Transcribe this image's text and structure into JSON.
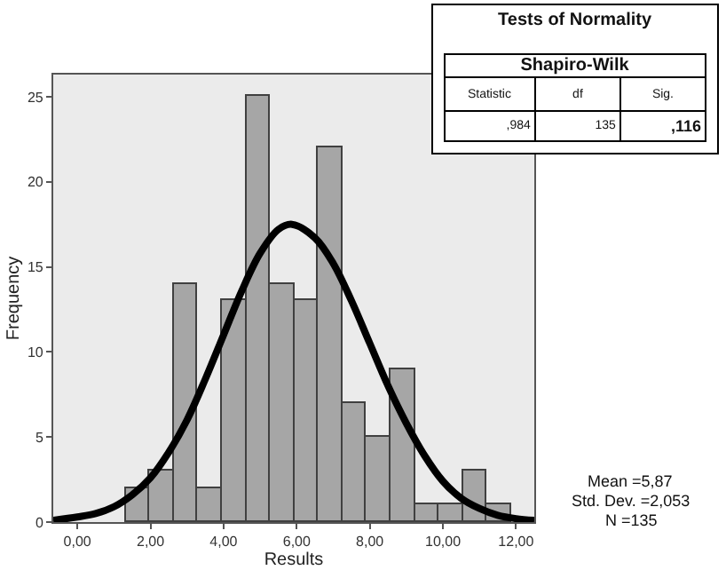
{
  "chart_data": {
    "type": "histogram",
    "xlabel": "Results",
    "ylabel": "Frequency",
    "bins": [
      1.31,
      1.97,
      2.63,
      3.29,
      3.95,
      4.61,
      5.27,
      5.93,
      6.59,
      7.25,
      7.91,
      8.57,
      9.23,
      9.89,
      10.55,
      11.21,
      11.87
    ],
    "values": [
      2,
      3,
      14,
      2,
      13,
      25,
      14,
      13,
      22,
      7,
      5,
      9,
      1,
      1,
      3,
      1
    ],
    "color": "#a6a6a6",
    "series": [
      {
        "type": "line",
        "color": "#000000",
        "x": [
          -0.66,
          0,
          0.5,
          1,
          1.5,
          2,
          2.5,
          3,
          3.5,
          4,
          4.5,
          5,
          5.5,
          5.87,
          6.5,
          7,
          7.5,
          8,
          8.5,
          9,
          9.5,
          10,
          10.5,
          11,
          11.5,
          12,
          12.5
        ],
        "values": [
          0.1,
          0.3,
          0.5,
          0.9,
          1.6,
          2.6,
          4.1,
          6.0,
          8.4,
          11.0,
          13.6,
          15.8,
          17.2,
          17.5,
          16.7,
          15.2,
          13.0,
          10.5,
          8.0,
          5.8,
          3.9,
          2.4,
          1.4,
          0.8,
          0.4,
          0.2,
          0.1
        ]
      }
    ],
    "xlim": [
      -0.66,
      12.5
    ],
    "ylim": [
      0,
      26.3
    ],
    "xticks": [
      {
        "value": 0,
        "label": "0,00"
      },
      {
        "value": 2,
        "label": "2,00"
      },
      {
        "value": 4,
        "label": "4,00"
      },
      {
        "value": 6,
        "label": "6,00"
      },
      {
        "value": 8,
        "label": "8,00"
      },
      {
        "value": 10,
        "label": "10,00"
      },
      {
        "value": 12,
        "label": "12,00"
      }
    ],
    "yticks": [
      0,
      5,
      10,
      15,
      20,
      25
    ],
    "grid": false,
    "annotations": [
      "Tests of Normality",
      "Shapiro-Wilk",
      "Statistic",
      "df",
      "Sig.",
      ",984",
      "135",
      ",116",
      "Mean =5,87",
      "Std. Dev. =2,053",
      "N =135"
    ]
  }
}
